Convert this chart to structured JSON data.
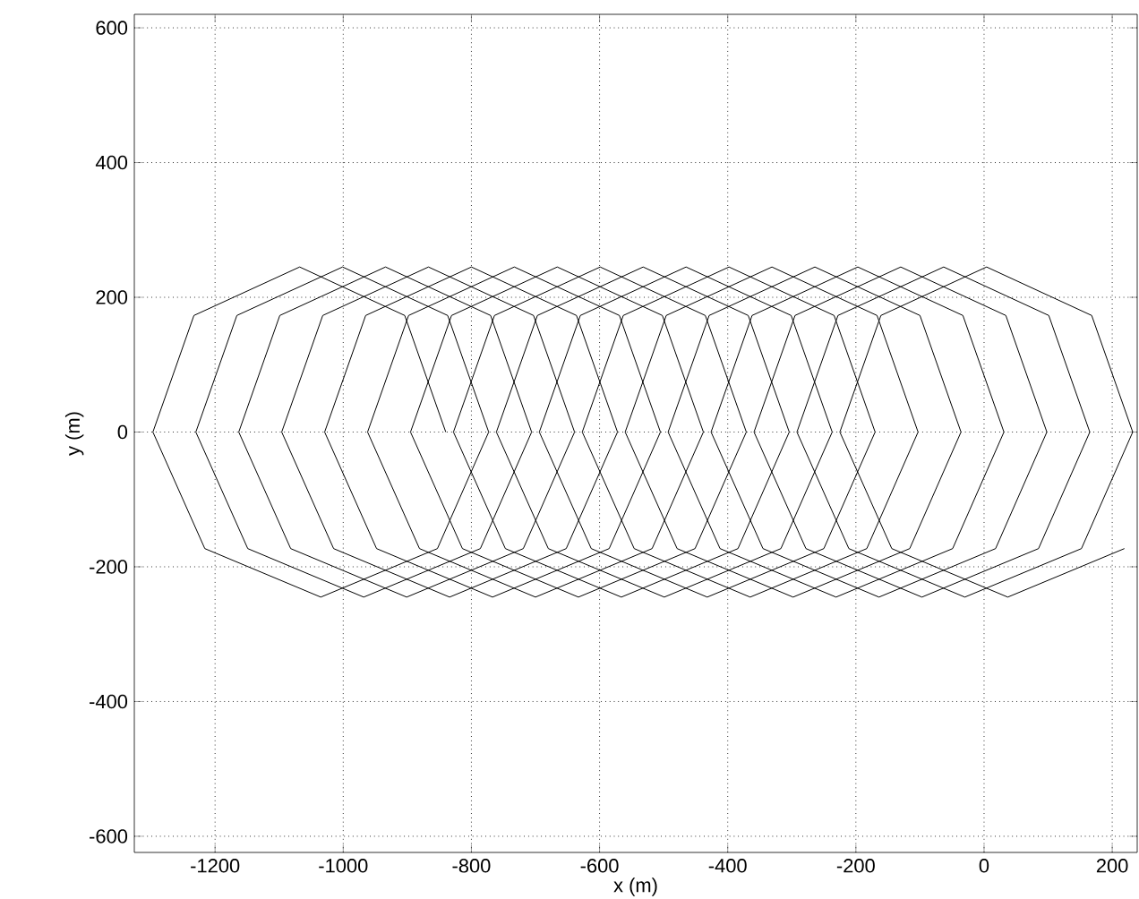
{
  "chart_data": {
    "type": "line",
    "xlabel": "x (m)",
    "ylabel": "y (m)",
    "xlim": [
      -1326,
      239
    ],
    "ylim": [
      -624,
      620
    ],
    "xticks": [
      -1200,
      -1000,
      -800,
      -600,
      -400,
      -200,
      0,
      200
    ],
    "yticks": [
      -600,
      -400,
      -200,
      0,
      200,
      400,
      600
    ],
    "grid": true,
    "marker": "none",
    "line_style": "solid",
    "series": [
      {
        "color": "#000000",
        "x": [
          -840,
          -904,
          -1068,
          -1233,
          -1297,
          -1216,
          -1035,
          -853,
          -773,
          -837,
          -1001,
          -1166,
          -1230,
          -1149,
          -968,
          -786,
          -706,
          -770,
          -934,
          -1099,
          -1163,
          -1082,
          -901,
          -719,
          -639,
          -703,
          -867,
          -1032,
          -1096,
          -1015,
          -834,
          -652,
          -572,
          -636,
          -800,
          -965,
          -1029,
          -948,
          -767,
          -585,
          -505,
          -569,
          -733,
          -898,
          -962,
          -881,
          -700,
          -518,
          -438,
          -502,
          -666,
          -831,
          -895,
          -814,
          -633,
          -451,
          -371,
          -435,
          -599,
          -764,
          -828,
          -747,
          -566,
          -384,
          -304,
          -368,
          -532,
          -697,
          -761,
          -680,
          -499,
          -317,
          -237,
          -301,
          -465,
          -630,
          -694,
          -613,
          -432,
          -250,
          -170,
          -234,
          -398,
          -563,
          -627,
          -546,
          -365,
          -183,
          -103,
          -167,
          -331,
          -496,
          -560,
          -479,
          -298,
          -116,
          -36,
          -100,
          -264,
          -429,
          -493,
          -412,
          -231,
          -49,
          31,
          -33,
          -197,
          -362,
          -426,
          -345,
          -164,
          18,
          98,
          34,
          -130,
          -295,
          -359,
          -278,
          -97,
          85,
          165,
          101,
          -63,
          -228,
          -292,
          -211,
          -30,
          152,
          232,
          168,
          4,
          -161,
          -225,
          -144,
          37,
          219
        ],
        "values": [
          0,
          173,
          245,
          173,
          0,
          -173,
          -245,
          -173,
          0,
          173,
          245,
          173,
          0,
          -173,
          -245,
          -173,
          0,
          173,
          245,
          173,
          0,
          -173,
          -245,
          -173,
          0,
          173,
          245,
          173,
          0,
          -173,
          -245,
          -173,
          0,
          173,
          245,
          173,
          0,
          -173,
          -245,
          -173,
          0,
          173,
          245,
          173,
          0,
          -173,
          -245,
          -173,
          0,
          173,
          245,
          173,
          0,
          -173,
          -245,
          -173,
          0,
          173,
          245,
          173,
          0,
          -173,
          -245,
          -173,
          0,
          173,
          245,
          173,
          0,
          -173,
          -245,
          -173,
          0,
          173,
          245,
          173,
          0,
          -173,
          -245,
          -173,
          0,
          173,
          245,
          173,
          0,
          -173,
          -245,
          -173,
          0,
          173,
          245,
          173,
          0,
          -173,
          -245,
          -173,
          0,
          173,
          245,
          173,
          0,
          -173,
          -245,
          -173,
          0,
          173,
          245,
          173,
          0,
          -173,
          -245,
          -173,
          0,
          173,
          245,
          173,
          0,
          -173,
          -245,
          -173,
          0,
          173,
          245,
          173,
          0,
          -173,
          -245,
          -173,
          0,
          173,
          245,
          173,
          0,
          -173,
          -245,
          -173
        ]
      }
    ]
  }
}
